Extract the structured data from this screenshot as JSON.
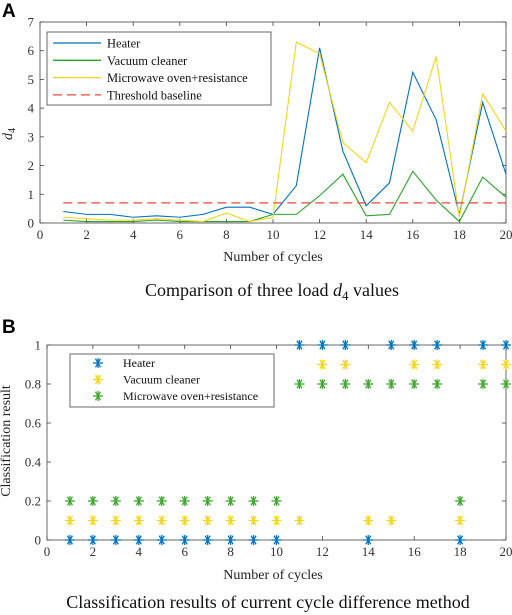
{
  "chart_data": [
    {
      "panel": "A",
      "type": "line",
      "caption": "Comparison of three load d4 values",
      "caption_main": "Comparison of three load ",
      "caption_var": "d",
      "caption_sub": "4",
      "caption_tail": " values",
      "xlabel": "Number of cycles",
      "ylabel": "d",
      "ylabel_sub": "4",
      "xlim": [
        0,
        20
      ],
      "ylim": [
        0,
        7
      ],
      "xticks": [
        0,
        2,
        4,
        6,
        8,
        10,
        12,
        14,
        16,
        18,
        20
      ],
      "yticks": [
        0,
        1,
        2,
        3,
        4,
        5,
        6,
        7
      ],
      "legend_position": "top-left",
      "x": [
        1,
        2,
        3,
        4,
        5,
        6,
        7,
        8,
        9,
        10,
        11,
        12,
        13,
        14,
        15,
        16,
        17,
        18,
        19,
        20
      ],
      "series": [
        {
          "name": "Heater",
          "color": "#0072BD",
          "style": "solid",
          "values": [
            0.4,
            0.3,
            0.3,
            0.2,
            0.25,
            0.2,
            0.3,
            0.55,
            0.55,
            0.3,
            1.3,
            6.1,
            2.5,
            0.6,
            1.4,
            5.25,
            3.6,
            0.3,
            4.2,
            1.7
          ]
        },
        {
          "name": "Vacuum cleaner",
          "color": "#2CA02C",
          "style": "solid",
          "values": [
            0.1,
            0.05,
            0.05,
            0.05,
            0.1,
            0.05,
            0.05,
            0.05,
            0.05,
            0.3,
            0.3,
            0.95,
            1.7,
            0.25,
            0.3,
            1.8,
            0.8,
            0.05,
            1.6,
            0.9
          ]
        },
        {
          "name": "Microwave oven+resistance",
          "color": "#F2D61B",
          "style": "solid",
          "values": [
            0.2,
            0.15,
            0.1,
            0.1,
            0.15,
            0.1,
            0.05,
            0.35,
            0.05,
            0.2,
            6.3,
            5.9,
            2.8,
            2.1,
            4.2,
            3.2,
            5.8,
            0.2,
            4.5,
            3.2
          ]
        },
        {
          "name": "Threshold baseline",
          "color": "#E8483B",
          "style": "dashed",
          "values": [
            0.7,
            0.7,
            0.7,
            0.7,
            0.7,
            0.7,
            0.7,
            0.7,
            0.7,
            0.7,
            0.7,
            0.7,
            0.7,
            0.7,
            0.7,
            0.7,
            0.7,
            0.7,
            0.7,
            0.7
          ]
        }
      ]
    },
    {
      "panel": "B",
      "type": "scatter",
      "caption": "Classification results of current cycle difference method",
      "xlabel": "Number of cycles",
      "ylabel": "Classification result",
      "xlim": [
        0,
        20
      ],
      "ylim": [
        0,
        1
      ],
      "xticks": [
        0,
        2,
        4,
        6,
        8,
        10,
        12,
        14,
        16,
        18,
        20
      ],
      "yticks": [
        0,
        0.2,
        0.4,
        0.6,
        0.8,
        1
      ],
      "ytick_labels": [
        "0",
        "0.2",
        "0.4",
        "0.6",
        "0.8",
        "1"
      ],
      "legend_position": "top-left",
      "marker": "asterisk",
      "x": [
        1,
        2,
        3,
        4,
        5,
        6,
        7,
        8,
        9,
        10,
        11,
        12,
        13,
        14,
        15,
        16,
        17,
        18,
        19,
        20
      ],
      "series": [
        {
          "name": "Heater",
          "color": "#0072BD",
          "values": [
            0,
            0,
            0,
            0,
            0,
            0,
            0,
            0,
            0,
            0,
            1,
            1,
            1,
            0,
            1,
            1,
            1,
            0,
            1,
            1
          ]
        },
        {
          "name": "Vacuum cleaner",
          "color": "#F2D61B",
          "values": [
            0.1,
            0.1,
            0.1,
            0.1,
            0.1,
            0.1,
            0.1,
            0.1,
            0.1,
            0.1,
            0.1,
            0.9,
            0.9,
            0.1,
            0.1,
            0.9,
            0.9,
            0.1,
            0.9,
            0.9
          ]
        },
        {
          "name": "Microwave oven+resistance",
          "color": "#3EA62E",
          "values": [
            0.2,
            0.2,
            0.2,
            0.2,
            0.2,
            0.2,
            0.2,
            0.2,
            0.2,
            0.2,
            0.8,
            0.8,
            0.8,
            0.8,
            0.8,
            0.8,
            0.8,
            0.2,
            0.8,
            0.8
          ]
        }
      ]
    }
  ]
}
